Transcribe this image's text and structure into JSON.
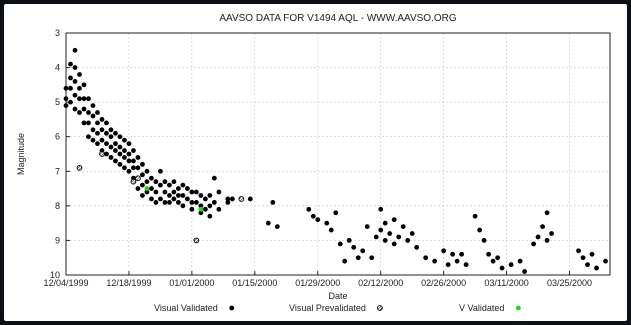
{
  "chart_data": {
    "type": "scatter",
    "title": "AAVSO DATA FOR V1494 AQL - WWW.AAVSO.ORG",
    "xlabel": "Date",
    "ylabel": "Magnitude",
    "x_range": [
      "1999-12-04",
      "2000-04-03"
    ],
    "ylim": [
      3,
      10
    ],
    "y_inverted": true,
    "grid": true,
    "legend_placement": "bottom",
    "x_ticks": [
      "12/04/1999",
      "12/18/1999",
      "01/01/2000",
      "01/15/2000",
      "01/29/2000",
      "02/12/2000",
      "02/26/2000",
      "03/11/2000",
      "03/25/2000"
    ],
    "y_ticks": [
      "3",
      "4",
      "5",
      "6",
      "7",
      "8",
      "9",
      "10"
    ],
    "series": [
      {
        "name": "Visual Validated",
        "marker": "filled-circle",
        "color": "#000000",
        "points": [
          [
            "1999-12-04",
            5.1
          ],
          [
            "1999-12-04",
            4.6
          ],
          [
            "1999-12-04",
            4.9
          ],
          [
            "1999-12-05",
            4.3
          ],
          [
            "1999-12-05",
            3.9
          ],
          [
            "1999-12-05",
            4.6
          ],
          [
            "1999-12-05",
            5.0
          ],
          [
            "1999-12-06",
            3.5
          ],
          [
            "1999-12-06",
            4.0
          ],
          [
            "1999-12-06",
            4.4
          ],
          [
            "1999-12-06",
            4.8
          ],
          [
            "1999-12-06",
            5.2
          ],
          [
            "1999-12-07",
            4.2
          ],
          [
            "1999-12-07",
            4.6
          ],
          [
            "1999-12-07",
            4.9
          ],
          [
            "1999-12-07",
            5.3
          ],
          [
            "1999-12-08",
            4.5
          ],
          [
            "1999-12-08",
            4.9
          ],
          [
            "1999-12-08",
            5.2
          ],
          [
            "1999-12-08",
            5.6
          ],
          [
            "1999-12-09",
            4.9
          ],
          [
            "1999-12-09",
            5.3
          ],
          [
            "1999-12-09",
            5.6
          ],
          [
            "1999-12-09",
            6.0
          ],
          [
            "1999-12-10",
            5.1
          ],
          [
            "1999-12-10",
            5.4
          ],
          [
            "1999-12-10",
            5.8
          ],
          [
            "1999-12-10",
            6.1
          ],
          [
            "1999-12-11",
            5.3
          ],
          [
            "1999-12-11",
            5.6
          ],
          [
            "1999-12-11",
            5.9
          ],
          [
            "1999-12-11",
            6.2
          ],
          [
            "1999-12-12",
            5.5
          ],
          [
            "1999-12-12",
            5.8
          ],
          [
            "1999-12-12",
            6.1
          ],
          [
            "1999-12-12",
            6.4
          ],
          [
            "1999-12-13",
            5.6
          ],
          [
            "1999-12-13",
            5.9
          ],
          [
            "1999-12-13",
            6.2
          ],
          [
            "1999-12-13",
            6.5
          ],
          [
            "1999-12-14",
            5.8
          ],
          [
            "1999-12-14",
            6.0
          ],
          [
            "1999-12-14",
            6.3
          ],
          [
            "1999-12-14",
            6.6
          ],
          [
            "1999-12-15",
            5.9
          ],
          [
            "1999-12-15",
            6.2
          ],
          [
            "1999-12-15",
            6.4
          ],
          [
            "1999-12-15",
            6.7
          ],
          [
            "1999-12-16",
            6.0
          ],
          [
            "1999-12-16",
            6.3
          ],
          [
            "1999-12-16",
            6.5
          ],
          [
            "1999-12-16",
            6.8
          ],
          [
            "1999-12-17",
            6.1
          ],
          [
            "1999-12-17",
            6.4
          ],
          [
            "1999-12-17",
            6.6
          ],
          [
            "1999-12-17",
            6.9
          ],
          [
            "1999-12-18",
            6.2
          ],
          [
            "1999-12-18",
            6.5
          ],
          [
            "1999-12-18",
            6.7
          ],
          [
            "1999-12-18",
            7.0
          ],
          [
            "1999-12-19",
            6.4
          ],
          [
            "1999-12-19",
            6.7
          ],
          [
            "1999-12-19",
            6.9
          ],
          [
            "1999-12-19",
            7.2
          ],
          [
            "1999-12-20",
            6.6
          ],
          [
            "1999-12-20",
            6.9
          ],
          [
            "1999-12-20",
            7.2
          ],
          [
            "1999-12-20",
            7.5
          ],
          [
            "1999-12-21",
            6.8
          ],
          [
            "1999-12-21",
            7.1
          ],
          [
            "1999-12-21",
            7.4
          ],
          [
            "1999-12-21",
            7.7
          ],
          [
            "1999-12-22",
            7.0
          ],
          [
            "1999-12-22",
            7.3
          ],
          [
            "1999-12-22",
            7.6
          ],
          [
            "1999-12-23",
            7.2
          ],
          [
            "1999-12-23",
            7.5
          ],
          [
            "1999-12-23",
            7.8
          ],
          [
            "1999-12-24",
            7.3
          ],
          [
            "1999-12-24",
            7.6
          ],
          [
            "1999-12-24",
            7.9
          ],
          [
            "1999-12-25",
            7.0
          ],
          [
            "1999-12-25",
            7.4
          ],
          [
            "1999-12-25",
            7.8
          ],
          [
            "1999-12-26",
            7.3
          ],
          [
            "1999-12-26",
            7.6
          ],
          [
            "1999-12-26",
            7.9
          ],
          [
            "1999-12-27",
            7.4
          ],
          [
            "1999-12-27",
            7.7
          ],
          [
            "1999-12-27",
            7.9
          ],
          [
            "1999-12-28",
            7.3
          ],
          [
            "1999-12-28",
            7.6
          ],
          [
            "1999-12-28",
            7.8
          ],
          [
            "1999-12-29",
            7.5
          ],
          [
            "1999-12-29",
            7.7
          ],
          [
            "1999-12-29",
            7.9
          ],
          [
            "1999-12-30",
            7.4
          ],
          [
            "1999-12-30",
            7.7
          ],
          [
            "1999-12-30",
            8.0
          ],
          [
            "1999-12-31",
            7.5
          ],
          [
            "1999-12-31",
            7.8
          ],
          [
            "2000-01-01",
            7.6
          ],
          [
            "2000-01-01",
            7.9
          ],
          [
            "2000-01-01",
            8.1
          ],
          [
            "2000-01-02",
            7.6
          ],
          [
            "2000-01-02",
            7.9
          ],
          [
            "2000-01-03",
            7.7
          ],
          [
            "2000-01-03",
            8.0
          ],
          [
            "2000-01-03",
            8.2
          ],
          [
            "2000-01-04",
            7.8
          ],
          [
            "2000-01-04",
            8.1
          ],
          [
            "2000-01-05",
            7.7
          ],
          [
            "2000-01-05",
            8.0
          ],
          [
            "2000-01-05",
            8.3
          ],
          [
            "2000-01-06",
            7.2
          ],
          [
            "2000-01-06",
            7.9
          ],
          [
            "2000-01-07",
            7.6
          ],
          [
            "2000-01-07",
            8.1
          ],
          [
            "2000-01-09",
            7.8
          ],
          [
            "2000-01-09",
            7.9
          ],
          [
            "2000-01-10",
            7.8
          ],
          [
            "2000-01-14",
            7.8
          ],
          [
            "2000-01-18",
            8.5
          ],
          [
            "2000-01-19",
            7.9
          ],
          [
            "2000-01-20",
            8.6
          ],
          [
            "2000-01-27",
            8.1
          ],
          [
            "2000-01-28",
            8.3
          ],
          [
            "2000-01-29",
            8.4
          ],
          [
            "2000-01-31",
            8.5
          ],
          [
            "2000-02-01",
            8.7
          ],
          [
            "2000-02-02",
            8.2
          ],
          [
            "2000-02-03",
            9.1
          ],
          [
            "2000-02-04",
            9.6
          ],
          [
            "2000-02-05",
            9.0
          ],
          [
            "2000-02-06",
            9.2
          ],
          [
            "2000-02-07",
            9.5
          ],
          [
            "2000-02-08",
            9.3
          ],
          [
            "2000-02-09",
            8.6
          ],
          [
            "2000-02-10",
            9.5
          ],
          [
            "2000-02-11",
            8.9
          ],
          [
            "2000-02-12",
            8.1
          ],
          [
            "2000-02-12",
            8.7
          ],
          [
            "2000-02-13",
            8.5
          ],
          [
            "2000-02-13",
            9.0
          ],
          [
            "2000-02-14",
            8.8
          ],
          [
            "2000-02-15",
            8.4
          ],
          [
            "2000-02-15",
            9.1
          ],
          [
            "2000-02-16",
            8.9
          ],
          [
            "2000-02-17",
            8.6
          ],
          [
            "2000-02-18",
            9.0
          ],
          [
            "2000-02-19",
            8.8
          ],
          [
            "2000-02-20",
            9.2
          ],
          [
            "2000-02-22",
            9.5
          ],
          [
            "2000-02-24",
            9.6
          ],
          [
            "2000-02-26",
            9.3
          ],
          [
            "2000-02-27",
            9.7
          ],
          [
            "2000-02-28",
            9.4
          ],
          [
            "2000-02-29",
            9.6
          ],
          [
            "2000-03-01",
            9.4
          ],
          [
            "2000-03-02",
            9.7
          ],
          [
            "2000-03-04",
            8.3
          ],
          [
            "2000-03-05",
            8.7
          ],
          [
            "2000-03-06",
            9.0
          ],
          [
            "2000-03-07",
            9.4
          ],
          [
            "2000-03-08",
            9.6
          ],
          [
            "2000-03-09",
            9.5
          ],
          [
            "2000-03-10",
            9.8
          ],
          [
            "2000-03-12",
            9.7
          ],
          [
            "2000-03-14",
            9.6
          ],
          [
            "2000-03-15",
            9.9
          ],
          [
            "2000-03-17",
            9.1
          ],
          [
            "2000-03-18",
            8.9
          ],
          [
            "2000-03-19",
            8.6
          ],
          [
            "2000-03-20",
            8.2
          ],
          [
            "2000-03-20",
            9.0
          ],
          [
            "2000-03-21",
            8.8
          ],
          [
            "2000-03-27",
            9.3
          ],
          [
            "2000-03-28",
            9.5
          ],
          [
            "2000-03-29",
            9.7
          ],
          [
            "2000-03-30",
            9.4
          ],
          [
            "2000-03-31",
            9.8
          ],
          [
            "2000-04-02",
            9.6
          ]
        ]
      },
      {
        "name": "Visual Prevalidated",
        "marker": "hatched-circle",
        "color": "#000000",
        "points": [
          [
            "1999-12-07",
            6.9
          ],
          [
            "1999-12-12",
            6.5
          ],
          [
            "1999-12-19",
            7.3
          ],
          [
            "1999-12-20",
            7.2
          ],
          [
            "2000-01-02",
            9.0
          ],
          [
            "2000-01-12",
            7.8
          ]
        ]
      },
      {
        "name": "V Validated",
        "marker": "filled-circle",
        "color": "#22d322",
        "points": [
          [
            "1999-12-22",
            7.5
          ],
          [
            "2000-01-03",
            8.1
          ]
        ]
      }
    ]
  }
}
